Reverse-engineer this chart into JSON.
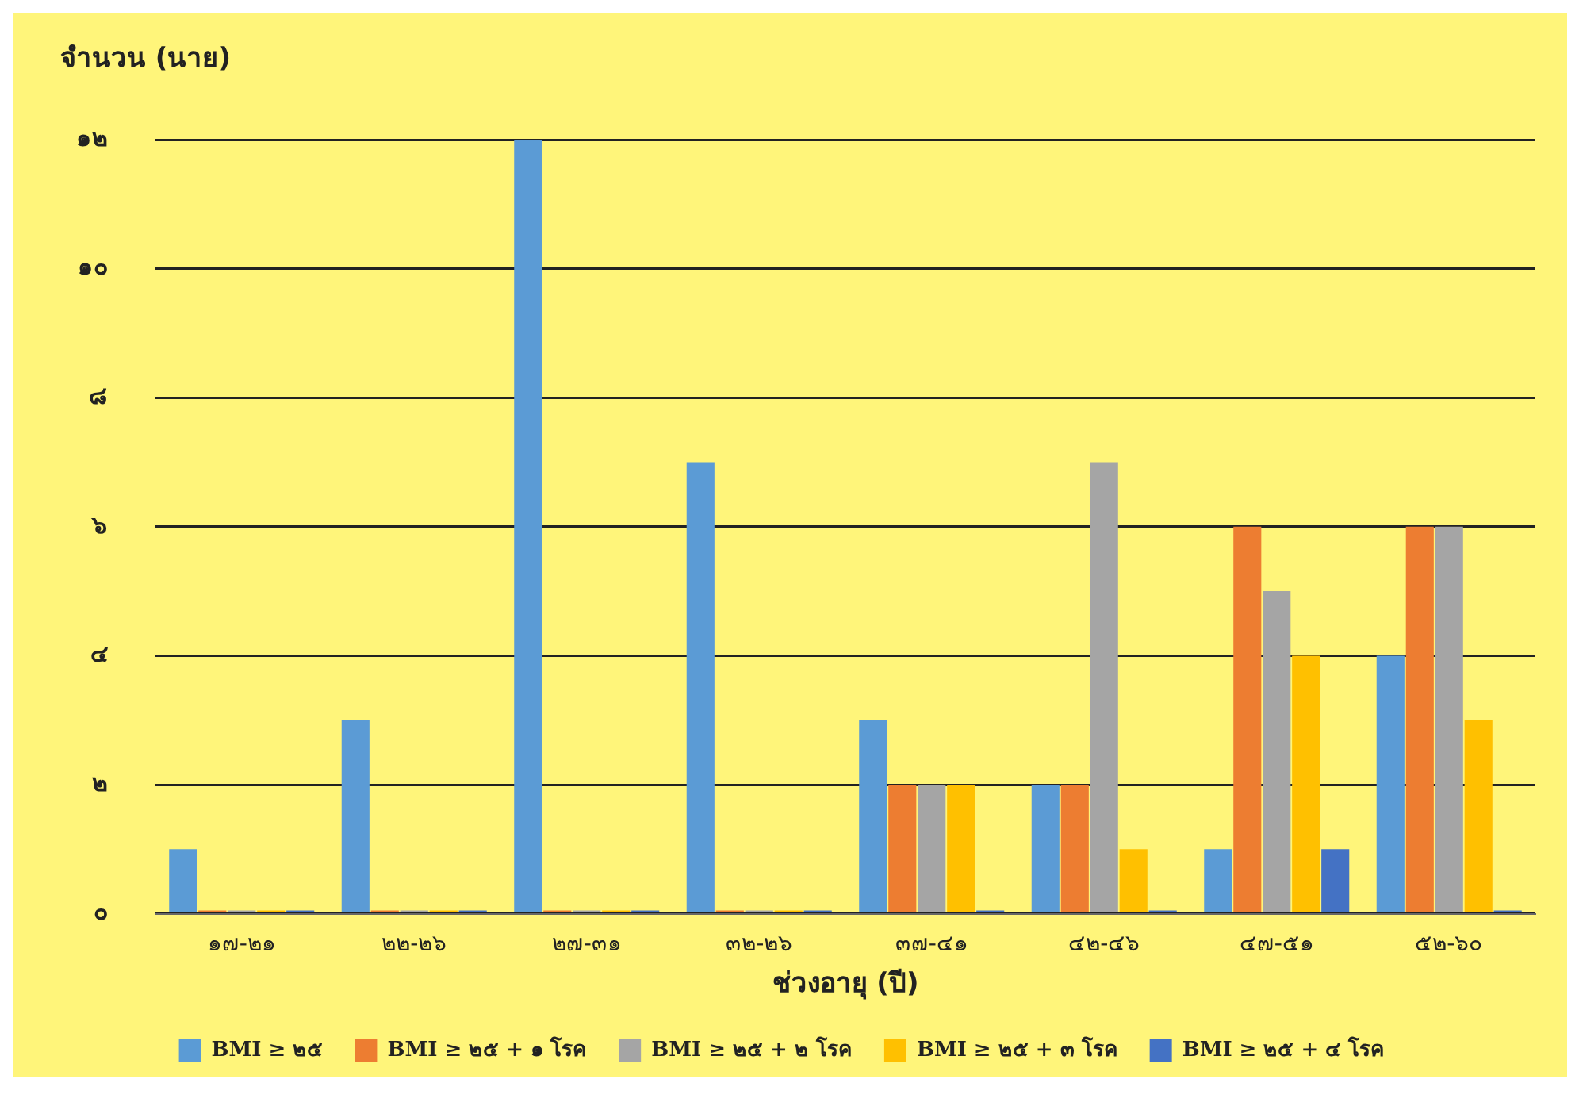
{
  "chart_data": {
    "type": "bar",
    "ylabel": "จำนวน (นาย)",
    "xlabel": "ช่วงอายุ (ปี)",
    "categories": [
      "๑๗-๒๑",
      "๒๒-๒๖",
      "๒๗-๓๑",
      "๓๒-๒๖",
      "๓๗-๔๑",
      "๔๒-๔๖",
      "๔๗-๕๑",
      "๕๒-๖๐"
    ],
    "series": [
      {
        "name": "BMI ≥ ๒๕",
        "color": "#5b9bd5",
        "values": [
          1,
          3,
          12,
          7,
          3,
          2,
          1,
          4
        ]
      },
      {
        "name": "BMI ≥ ๒๕ + ๑ โรค",
        "color": "#ed7d31",
        "values": [
          0,
          0,
          0,
          0,
          2,
          2,
          6,
          6
        ]
      },
      {
        "name": "BMI ≥ ๒๕ + ๒ โรค",
        "color": "#a5a5a5",
        "values": [
          0,
          0,
          0,
          0,
          2,
          7,
          5,
          6
        ]
      },
      {
        "name": "BMI ≥ ๒๕ + ๓ โรค",
        "color": "#ffc000",
        "values": [
          0,
          0,
          0,
          0,
          2,
          1,
          4,
          3
        ]
      },
      {
        "name": "BMI ≥ ๒๕ + ๔ โรค",
        "color": "#4472c4",
        "values": [
          0,
          0,
          0,
          0,
          0,
          0,
          1,
          0
        ]
      }
    ],
    "ylim": [
      0,
      12
    ],
    "yticks": [
      {
        "value": 0,
        "label": "๐"
      },
      {
        "value": 2,
        "label": "๒"
      },
      {
        "value": 4,
        "label": "๔"
      },
      {
        "value": 6,
        "label": "๖"
      },
      {
        "value": 8,
        "label": "๘"
      },
      {
        "value": 10,
        "label": "๑๐"
      },
      {
        "value": 12,
        "label": "๑๒"
      }
    ],
    "grid": "y",
    "legend": "bottom"
  }
}
